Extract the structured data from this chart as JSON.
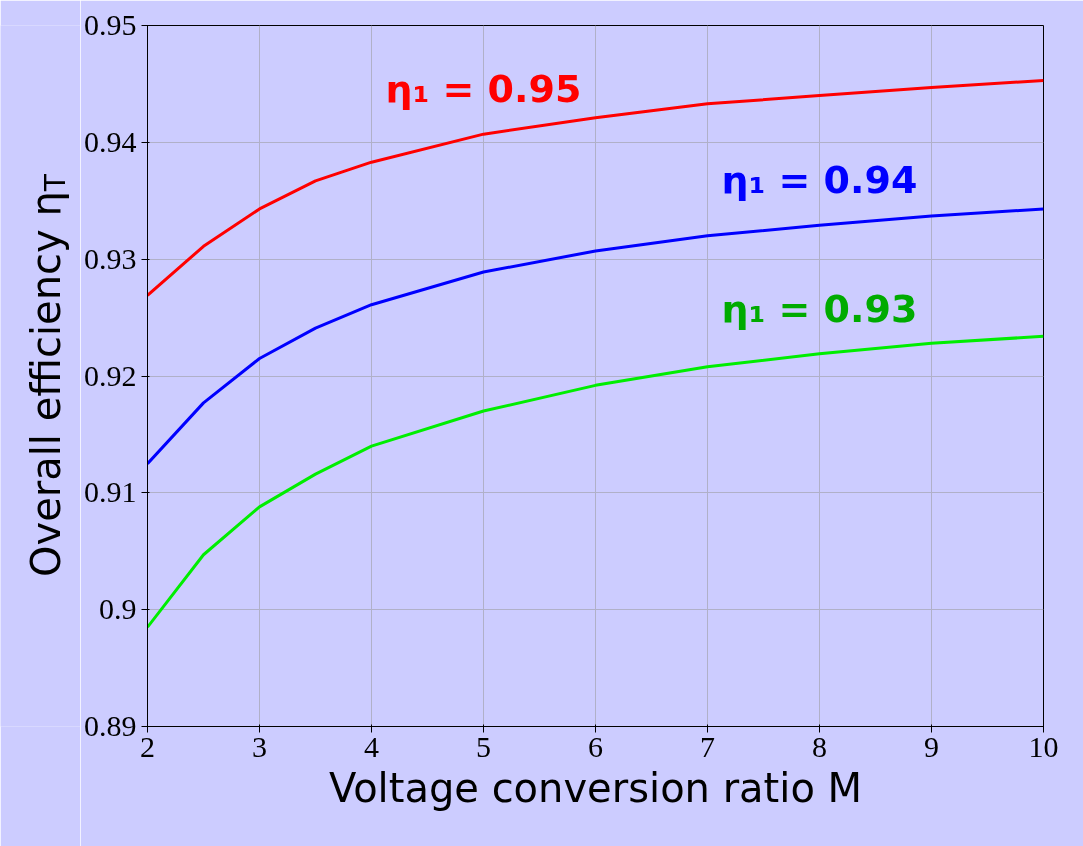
{
  "chart_data": {
    "type": "line",
    "xlabel": "Voltage conversion ratio M",
    "ylabel": "Overall efficiency η$_{T}$",
    "x": [
      2,
      2.5,
      3,
      3.5,
      4,
      5,
      6,
      7,
      8,
      9,
      10
    ],
    "series": [
      {
        "name": "η₁ = 0.95",
        "color": "#ff0000",
        "values": [
          0.9269,
          0.9311,
          0.9343,
          0.9367,
          0.9383,
          0.9407,
          0.9421,
          0.9433,
          0.944,
          0.9447,
          0.9453
        ]
      },
      {
        "name": "η₁ = 0.94",
        "color": "#0000ff",
        "values": [
          0.9125,
          0.9177,
          0.9215,
          0.9241,
          0.9261,
          0.9289,
          0.9307,
          0.932,
          0.9329,
          0.9337,
          0.9343
        ]
      },
      {
        "name": "η₁ = 0.93",
        "color": "#00ee00",
        "values": [
          0.8985,
          0.9047,
          0.9088,
          0.9116,
          0.914,
          0.917,
          0.9192,
          0.9208,
          0.9219,
          0.9228,
          0.9234
        ]
      }
    ],
    "xlim": [
      2,
      10
    ],
    "xticks": [
      2,
      3,
      4,
      5,
      6,
      7,
      8,
      9,
      10
    ],
    "ylim": [
      0.89,
      0.95
    ],
    "yticks": [
      {
        "value": 0.89,
        "label": "0.89"
      },
      {
        "value": 0.9,
        "label": "0.9"
      },
      {
        "value": 0.91,
        "label": "0.91"
      },
      {
        "value": 0.92,
        "label": "0.92"
      },
      {
        "value": 0.93,
        "label": "0.93"
      },
      {
        "value": 0.94,
        "label": "0.94"
      },
      {
        "value": 0.95,
        "label": "0.95"
      }
    ],
    "grid": true,
    "marker": "none",
    "line_style": "solid"
  }
}
